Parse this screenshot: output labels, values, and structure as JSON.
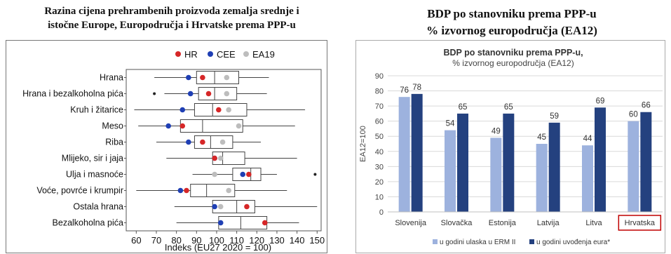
{
  "left_title_line1": "Razina cijena prehrambenih proizvoda zemalja srednje i",
  "left_title_line2": "istočne Europe, Europodručja i Hrvatske prema PPP-u",
  "right_title_line1": "BDP po stanovniku prema PPP-u",
  "right_title_line2": "% izvornog europodručja (EA12)",
  "colors": {
    "hr": "#d62728",
    "cee": "#1f3fb4",
    "ea19": "#bdbdbd",
    "bar_light": "#9db2de",
    "bar_dark": "#24417f",
    "highlight_box": "#c00000"
  },
  "chart_data": [
    {
      "type": "box",
      "xlabel": "Indeks (EU27 2020 = 100)",
      "xlim": [
        55,
        152
      ],
      "xticks": [
        60,
        70,
        80,
        90,
        100,
        110,
        120,
        130,
        140,
        150
      ],
      "legend": [
        "HR",
        "CEE",
        "EA19"
      ],
      "legend_position": "top",
      "categories": [
        "Hrana",
        "Hrana i bezalkoholna pića",
        "Kruh i žitarice",
        "Meso",
        "Riba",
        "Mlijeko, sir i jaja",
        "Ulja i masnoće",
        "Voće, povrće i krumpir",
        "Ostala hrana",
        "Bezalkoholna pića"
      ],
      "boxes": [
        {
          "min": 69,
          "q1": 90,
          "median": 99,
          "q3": 111,
          "max": 126,
          "outliers": []
        },
        {
          "min": 74,
          "q1": 91,
          "median": 99,
          "q3": 110,
          "max": 125,
          "outliers": [
            69
          ]
        },
        {
          "min": 59,
          "q1": 89,
          "median": 98,
          "q3": 115,
          "max": 144,
          "outliers": []
        },
        {
          "min": 61,
          "q1": 82,
          "median": 93,
          "q3": 113,
          "max": 139,
          "outliers": []
        },
        {
          "min": 70,
          "q1": 89,
          "median": 97,
          "q3": 108,
          "max": 122,
          "outliers": []
        },
        {
          "min": 75,
          "q1": 98,
          "median": 103,
          "q3": 114,
          "max": 140,
          "outliers": []
        },
        {
          "min": 88,
          "q1": 108,
          "median": 117,
          "q3": 122,
          "max": 130,
          "outliers": [
            149
          ]
        },
        {
          "min": 60,
          "q1": 87,
          "median": 95,
          "q3": 109,
          "max": 135,
          "outliers": []
        },
        {
          "min": 79,
          "q1": 98,
          "median": 110,
          "q3": 119,
          "max": 150,
          "outliers": []
        },
        {
          "min": 80,
          "q1": 101,
          "median": 112,
          "q3": 125,
          "max": 141,
          "outliers": []
        }
      ],
      "series": [
        {
          "name": "HR",
          "values": [
            93,
            96,
            101,
            83,
            93,
            99,
            116,
            85,
            115,
            124
          ]
        },
        {
          "name": "CEE",
          "values": [
            86,
            87,
            83,
            76,
            86,
            99,
            113,
            82,
            99,
            102
          ]
        },
        {
          "name": "EA19",
          "values": [
            105,
            105,
            106,
            111,
            103,
            102,
            99,
            106,
            102,
            102
          ]
        }
      ]
    },
    {
      "type": "bar",
      "title": "BDP po stanovniku prema PPP-u,",
      "subtitle": "% izvornog europodručja (EA12)",
      "ylabel": "EA12=100",
      "ylim": [
        0,
        90
      ],
      "yticks": [
        0,
        10,
        20,
        30,
        40,
        50,
        60,
        70,
        80,
        90
      ],
      "categories": [
        "Slovenija",
        "Slovačka",
        "Estonija",
        "Latvija",
        "Litva",
        "Hrvatska"
      ],
      "highlight_category": "Hrvatska",
      "legend_position": "bottom",
      "series": [
        {
          "name": "u godini ulaska u ERM II",
          "values": [
            76,
            54,
            49,
            45,
            44,
            60
          ]
        },
        {
          "name": "u godini uvođenja eura*",
          "values": [
            78,
            65,
            65,
            59,
            69,
            66
          ]
        }
      ]
    }
  ]
}
